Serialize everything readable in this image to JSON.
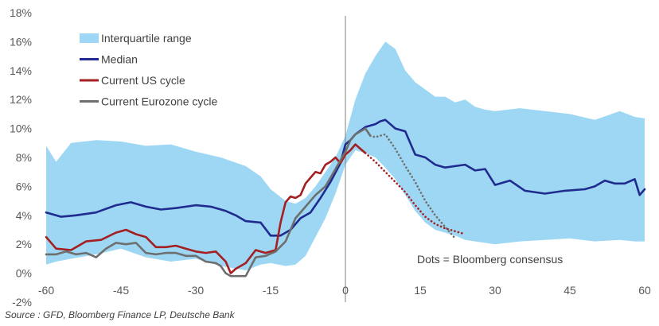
{
  "source_note": "Source : GFD, Bloomberg Finance LP, Deutsche Bank",
  "annotation": "Dots = Bloomberg consensus",
  "colors": {
    "iqr_fill": "#9dd7f3",
    "median": "#1f2b8e",
    "us": "#a31f21",
    "ez": "#6e6e6e",
    "zero_line": "#7f7f7f",
    "axis_text": "#595959"
  },
  "chart_data": {
    "type": "area",
    "xlim": [
      -60,
      60
    ],
    "ylim": [
      -2,
      18
    ],
    "x_ticks": [
      -60,
      -45,
      -30,
      -15,
      0,
      15,
      30,
      45,
      60
    ],
    "x_tick_labels": [
      "-60",
      "-45",
      "-30",
      "-15",
      "0",
      "15",
      "30",
      "45",
      "60"
    ],
    "y_ticks": [
      -2,
      0,
      2,
      4,
      6,
      8,
      10,
      12,
      14,
      16,
      18
    ],
    "y_tick_labels": [
      "-2%",
      "0%",
      "2%",
      "4%",
      "6%",
      "8%",
      "10%",
      "12%",
      "14%",
      "16%",
      "18%"
    ],
    "vertical_reference_x": 0,
    "grid": false,
    "legend_position": "top-left",
    "legend": [
      {
        "label": "Interquartile range",
        "kind": "band",
        "color_key": "iqr_fill"
      },
      {
        "label": "Median",
        "kind": "line",
        "color_key": "median"
      },
      {
        "label": "Current US cycle",
        "kind": "line",
        "color_key": "us"
      },
      {
        "label": "Current Eurozone cycle",
        "kind": "line",
        "color_key": "ez"
      }
    ],
    "band": {
      "name": "Interquartile range",
      "x": [
        -60,
        -58,
        -55,
        -50,
        -45,
        -40,
        -35,
        -30,
        -25,
        -20,
        -17,
        -15,
        -12,
        -10,
        -8,
        -6,
        -4,
        -2,
        0,
        2,
        4,
        6,
        8,
        10,
        12,
        14,
        16,
        18,
        20,
        22,
        24,
        26,
        28,
        30,
        35,
        40,
        45,
        50,
        55,
        58,
        60
      ],
      "upper": [
        8.8,
        7.7,
        9.0,
        9.2,
        9.1,
        8.8,
        8.9,
        8.4,
        8.0,
        7.4,
        6.7,
        5.8,
        5.0,
        4.8,
        5.2,
        6.0,
        7.0,
        8.0,
        9.5,
        12.0,
        13.8,
        15.0,
        16.0,
        15.5,
        14.0,
        13.2,
        12.7,
        12.2,
        12.2,
        11.8,
        12.0,
        11.5,
        11.3,
        11.2,
        11.4,
        11.2,
        11.0,
        10.6,
        11.2,
        10.8,
        10.7
      ],
      "lower": [
        0.6,
        0.8,
        1.0,
        1.3,
        1.7,
        1.1,
        0.8,
        1.0,
        0.5,
        0.2,
        0.6,
        0.7,
        0.5,
        0.6,
        1.2,
        2.5,
        3.8,
        5.5,
        7.5,
        8.5,
        8.3,
        8.0,
        7.3,
        6.5,
        5.4,
        4.3,
        3.5,
        3.0,
        2.8,
        2.6,
        2.3,
        2.2,
        2.1,
        2.0,
        2.2,
        2.3,
        2.4,
        2.2,
        2.3,
        2.2,
        2.2
      ]
    },
    "series": [
      {
        "name": "Median",
        "color_key": "median",
        "style": "solid",
        "x": [
          -60,
          -57,
          -54,
          -50,
          -46,
          -43,
          -40,
          -37,
          -34,
          -30,
          -27,
          -24,
          -22,
          -20,
          -17,
          -15,
          -13,
          -11,
          -9,
          -7,
          -5,
          -3,
          -1,
          0,
          1,
          2,
          4,
          6,
          7,
          8,
          10,
          12,
          14,
          16,
          18,
          20,
          22,
          24,
          26,
          28,
          30,
          33,
          36,
          40,
          44,
          48,
          50,
          52,
          54,
          56,
          58,
          59,
          60
        ],
        "y": [
          4.2,
          3.9,
          4.0,
          4.2,
          4.7,
          4.9,
          4.6,
          4.4,
          4.5,
          4.7,
          4.6,
          4.3,
          4.0,
          3.6,
          3.5,
          2.6,
          2.6,
          3.0,
          3.8,
          4.2,
          5.2,
          6.3,
          7.6,
          8.9,
          9.2,
          9.6,
          10.1,
          10.3,
          10.5,
          10.6,
          10.0,
          9.8,
          8.2,
          8.0,
          7.5,
          7.3,
          7.4,
          7.5,
          7.1,
          7.2,
          6.1,
          6.4,
          5.7,
          5.5,
          5.7,
          5.8,
          6.0,
          6.4,
          6.2,
          6.2,
          6.5,
          5.4,
          5.8
        ]
      },
      {
        "name": "Current US cycle",
        "color_key": "us",
        "style": "solid",
        "x": [
          -60,
          -58,
          -55,
          -52,
          -49,
          -46,
          -44,
          -42,
          -40,
          -38,
          -36,
          -34,
          -32,
          -30,
          -28,
          -26,
          -24,
          -23,
          -22,
          -21,
          -20,
          -18,
          -16,
          -14,
          -13,
          -12,
          -11,
          -10,
          -9,
          -8,
          -7,
          -6,
          -5,
          -4,
          -3,
          -2,
          -1,
          0,
          1,
          2,
          3,
          4
        ],
        "y": [
          2.5,
          1.7,
          1.6,
          2.2,
          2.3,
          2.8,
          3.0,
          2.7,
          2.5,
          1.8,
          1.8,
          1.9,
          1.7,
          1.5,
          1.4,
          1.5,
          0.8,
          0.0,
          0.3,
          0.5,
          0.7,
          1.6,
          1.4,
          1.6,
          3.5,
          4.9,
          5.3,
          5.2,
          5.4,
          6.2,
          6.6,
          7.0,
          6.9,
          7.5,
          7.7,
          8.0,
          7.6,
          8.2,
          8.5,
          8.9,
          8.6,
          8.3
        ]
      },
      {
        "name": "US consensus (dots)",
        "color_key": "us",
        "style": "dotted",
        "x": [
          4,
          6,
          8,
          10,
          12,
          14,
          16,
          18,
          20,
          22,
          24
        ],
        "y": [
          8.3,
          7.7,
          7.0,
          6.3,
          5.6,
          4.7,
          3.9,
          3.4,
          3.1,
          2.9,
          2.7
        ]
      },
      {
        "name": "Current Eurozone cycle",
        "color_key": "ez",
        "style": "solid",
        "x": [
          -60,
          -58,
          -56,
          -54,
          -52,
          -50,
          -48,
          -46,
          -44,
          -42,
          -40,
          -38,
          -36,
          -34,
          -32,
          -30,
          -28,
          -26,
          -25,
          -24,
          -23,
          -22,
          -20,
          -18,
          -16,
          -14,
          -12,
          -10,
          -8,
          -6,
          -4,
          -2,
          -1,
          0,
          1,
          2,
          3,
          4,
          5
        ],
        "y": [
          1.3,
          1.3,
          1.5,
          1.3,
          1.4,
          1.1,
          1.7,
          2.1,
          2.0,
          2.1,
          1.4,
          1.3,
          1.4,
          1.4,
          1.2,
          1.2,
          0.8,
          0.7,
          0.5,
          0.0,
          -0.2,
          -0.2,
          -0.2,
          1.1,
          1.2,
          1.5,
          2.2,
          3.8,
          4.6,
          5.4,
          6.0,
          7.2,
          7.8,
          8.4,
          9.2,
          9.6,
          9.8,
          10.0,
          9.5
        ]
      },
      {
        "name": "Eurozone consensus (dots)",
        "color_key": "ez",
        "style": "dotted",
        "x": [
          5,
          6,
          7,
          8,
          10,
          12,
          14,
          16,
          18,
          20,
          22
        ],
        "y": [
          9.5,
          9.4,
          9.5,
          9.6,
          8.6,
          7.4,
          6.3,
          5.0,
          4.0,
          3.2,
          2.4
        ]
      }
    ]
  }
}
